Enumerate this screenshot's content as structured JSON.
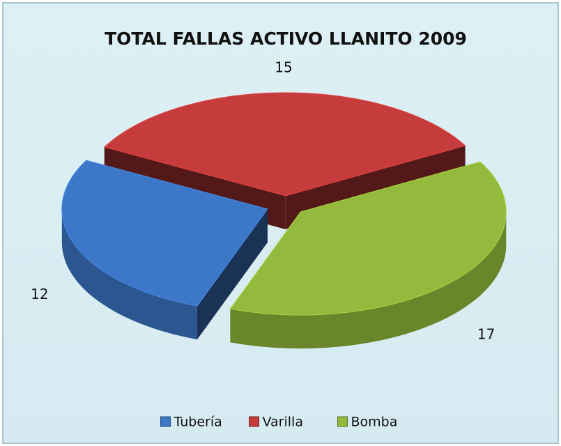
{
  "chart_data": {
    "type": "pie",
    "title": "TOTAL FALLAS ACTIVO LLANITO 2009",
    "categories": [
      "Tubería",
      "Varilla",
      "Bomba"
    ],
    "values": [
      12,
      15,
      17
    ],
    "colors": [
      "#3d78c8",
      "#c63b3b",
      "#93ba3c"
    ],
    "legend": "bottom"
  }
}
